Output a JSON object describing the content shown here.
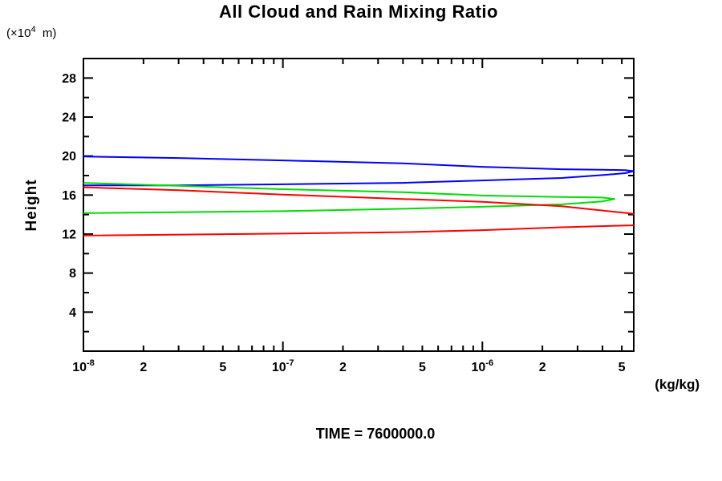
{
  "chart_data": {
    "type": "line",
    "title": "All Cloud and Rain Mixing Ratio",
    "footer": "TIME = 7600000.0",
    "legend": "none",
    "grid": false,
    "x_axis": {
      "unit": "(kg/kg)",
      "scale": "log",
      "min": 1e-08,
      "max": 5.74e-06,
      "decade_ticks": [
        {
          "value": 1e-08,
          "label": "10^-8"
        },
        {
          "value": 1e-07,
          "label": "10^-7"
        },
        {
          "value": 1e-06,
          "label": "10^-6"
        }
      ],
      "subtick_multipliers": [
        2,
        3,
        4,
        5,
        6,
        7,
        8,
        9
      ],
      "labeled_subtick_multipliers": [
        2,
        5
      ]
    },
    "y_axis": {
      "label": "Height",
      "unit": "(×10^4  m)",
      "min": 0,
      "max": 30,
      "major_ticks": [
        4,
        8,
        12,
        16,
        20,
        24,
        28
      ],
      "minor_ticks": [
        2,
        6,
        10,
        14,
        18,
        22,
        26
      ]
    },
    "series": [
      {
        "name": "blue-profile",
        "color": "#0000ff",
        "points": [
          [
            1e-08,
            17.0
          ],
          [
            3e-08,
            17.0
          ],
          [
            1e-07,
            17.1
          ],
          [
            4e-07,
            17.25
          ],
          [
            1e-06,
            17.5
          ],
          [
            2.5e-06,
            17.75
          ],
          [
            4e-06,
            18.05
          ],
          [
            5.2e-06,
            18.25
          ],
          [
            5.74e-06,
            18.45
          ],
          [
            5.2e-06,
            18.55
          ],
          [
            4e-06,
            18.6
          ],
          [
            2.5e-06,
            18.65
          ],
          [
            1e-06,
            18.9
          ],
          [
            4e-07,
            19.25
          ],
          [
            1e-07,
            19.55
          ],
          [
            3e-08,
            19.8
          ],
          [
            1e-08,
            19.95
          ]
        ]
      },
      {
        "name": "green-profile",
        "color": "#00dd00",
        "points": [
          [
            1e-08,
            14.15
          ],
          [
            1e-07,
            14.35
          ],
          [
            4e-07,
            14.6
          ],
          [
            1e-06,
            14.8
          ],
          [
            2.5e-06,
            15.05
          ],
          [
            4e-06,
            15.35
          ],
          [
            4.6e-06,
            15.6
          ],
          [
            4e-06,
            15.75
          ],
          [
            2.5e-06,
            15.8
          ],
          [
            1e-06,
            15.95
          ],
          [
            4e-07,
            16.3
          ],
          [
            1e-07,
            16.6
          ],
          [
            3e-08,
            16.95
          ],
          [
            1e-08,
            17.25
          ]
        ]
      },
      {
        "name": "red-profile",
        "color": "#ff0000",
        "points": [
          [
            1e-08,
            11.85
          ],
          [
            1e-07,
            12.05
          ],
          [
            4e-07,
            12.2
          ],
          [
            1e-06,
            12.4
          ],
          [
            2.5e-06,
            12.7
          ],
          [
            5.6e-06,
            12.9
          ],
          [
            8e-06,
            13.5
          ],
          [
            5.6e-06,
            14.1
          ],
          [
            2.5e-06,
            14.85
          ],
          [
            1e-06,
            15.3
          ],
          [
            4e-07,
            15.6
          ],
          [
            1e-07,
            16.05
          ],
          [
            3e-08,
            16.5
          ],
          [
            1e-08,
            16.8
          ]
        ]
      }
    ]
  }
}
